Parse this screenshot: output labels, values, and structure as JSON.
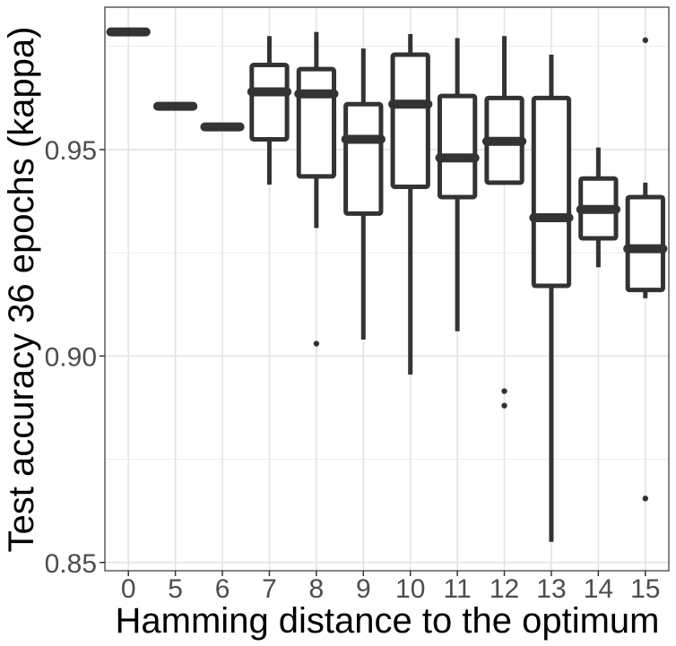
{
  "chart_data": {
    "type": "boxplot",
    "title": "",
    "xlabel": "Hamming distance to the optimum",
    "ylabel": "Test accuracy 36 epochs (kappa)",
    "ylim": [
      0.848,
      0.9845
    ],
    "y_ticks": [
      0.85,
      0.9,
      0.95
    ],
    "y_tick_labels": [
      "0.85",
      "0.90",
      "0.95"
    ],
    "y_minor_ticks": [
      0.875,
      0.925,
      0.975
    ],
    "grid": true,
    "categories": [
      "0",
      "5",
      "6",
      "7",
      "8",
      "9",
      "10",
      "11",
      "12",
      "13",
      "14",
      "15"
    ],
    "boxes": [
      {
        "category": "0",
        "whisker_low": 0.9785,
        "q1": 0.9785,
        "median": 0.9785,
        "q3": 0.9785,
        "whisker_high": 0.9785,
        "outliers": []
      },
      {
        "category": "5",
        "whisker_low": 0.9605,
        "q1": 0.9605,
        "median": 0.9605,
        "q3": 0.9605,
        "whisker_high": 0.9605,
        "outliers": []
      },
      {
        "category": "6",
        "whisker_low": 0.9555,
        "q1": 0.9555,
        "median": 0.9555,
        "q3": 0.9555,
        "whisker_high": 0.9555,
        "outliers": []
      },
      {
        "category": "7",
        "whisker_low": 0.9415,
        "q1": 0.9525,
        "median": 0.964,
        "q3": 0.9705,
        "whisker_high": 0.9775,
        "outliers": []
      },
      {
        "category": "8",
        "whisker_low": 0.931,
        "q1": 0.9435,
        "median": 0.9635,
        "q3": 0.9695,
        "whisker_high": 0.9785,
        "outliers": [
          0.903
        ]
      },
      {
        "category": "9",
        "whisker_low": 0.904,
        "q1": 0.9345,
        "median": 0.9525,
        "q3": 0.961,
        "whisker_high": 0.9745,
        "outliers": []
      },
      {
        "category": "10",
        "whisker_low": 0.8955,
        "q1": 0.941,
        "median": 0.961,
        "q3": 0.973,
        "whisker_high": 0.978,
        "outliers": []
      },
      {
        "category": "11",
        "whisker_low": 0.906,
        "q1": 0.9385,
        "median": 0.948,
        "q3": 0.963,
        "whisker_high": 0.977,
        "outliers": []
      },
      {
        "category": "12",
        "whisker_low": 0.942,
        "q1": 0.942,
        "median": 0.952,
        "q3": 0.9625,
        "whisker_high": 0.9775,
        "outliers": [
          0.8915,
          0.888
        ]
      },
      {
        "category": "13",
        "whisker_low": 0.855,
        "q1": 0.917,
        "median": 0.9335,
        "q3": 0.9625,
        "whisker_high": 0.973,
        "outliers": []
      },
      {
        "category": "14",
        "whisker_low": 0.9215,
        "q1": 0.9285,
        "median": 0.9355,
        "q3": 0.943,
        "whisker_high": 0.9505,
        "outliers": []
      },
      {
        "category": "15",
        "whisker_low": 0.914,
        "q1": 0.916,
        "median": 0.926,
        "q3": 0.9385,
        "whisker_high": 0.942,
        "outliers": [
          0.9765,
          0.8655
        ]
      }
    ]
  }
}
